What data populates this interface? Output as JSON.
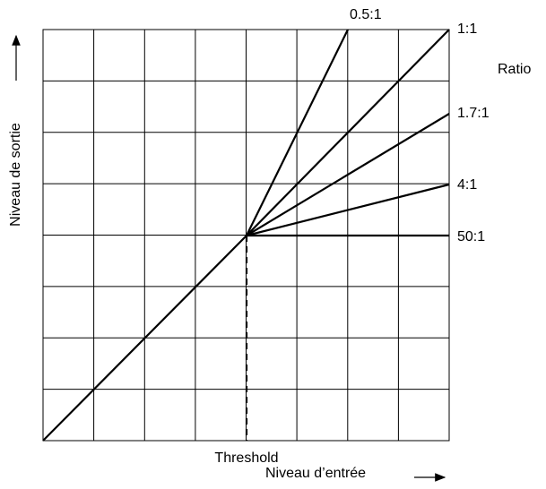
{
  "ratio_title": "Ratio",
  "ratios": [
    "0.5:1",
    "1:1",
    "1.7:1",
    "4:1",
    "50:1"
  ],
  "threshold_label": "Threshold",
  "x_axis_label": "Niveau d’entrée",
  "y_axis_label": "Niveau de sortie"
}
